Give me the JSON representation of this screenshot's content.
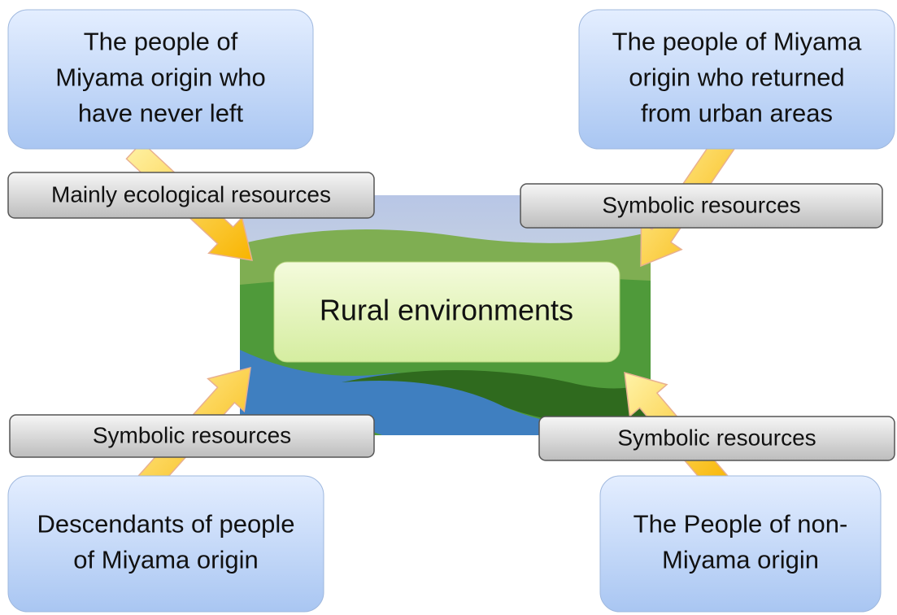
{
  "center": {
    "label": "Rural environments"
  },
  "groups": [
    {
      "box": {
        "lines": [
          "The people of",
          "Miyama origin who",
          "have never left"
        ]
      },
      "resource": "Mainly ecological resources"
    },
    {
      "box": {
        "lines": [
          "The people of Miyama",
          "origin who returned",
          "from urban areas"
        ]
      },
      "resource": "Symbolic resources"
    },
    {
      "box": {
        "lines": [
          "Descendants of people",
          "of Miyama origin"
        ]
      },
      "resource": "Symbolic resources"
    },
    {
      "box": {
        "lines": [
          "The People of non-",
          "Miyama origin"
        ]
      },
      "resource": "Symbolic resources"
    }
  ]
}
